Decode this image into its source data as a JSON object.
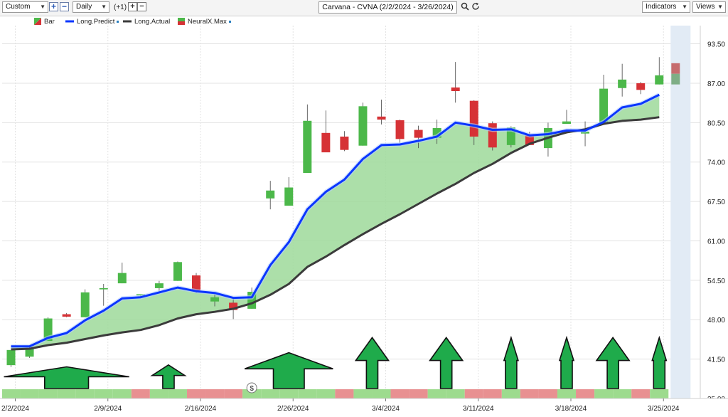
{
  "toolbar": {
    "mode_select": "Custom",
    "interval_select": "Daily",
    "offset_label": "(+1)",
    "title": "Carvana - CVNA (2/2/2024 - 3/26/2024)",
    "indicators_label": "Indicators",
    "views_label": "Views"
  },
  "legend": {
    "items": [
      {
        "label": "Bar"
      },
      {
        "label": "Long.Predict",
        "color": "#0b36ff"
      },
      {
        "label": "Long.Actual",
        "color": "#3b3b3b"
      },
      {
        "label": "NeuralX.Max"
      }
    ]
  },
  "colors": {
    "up": "#4cb84a",
    "down": "#d63236",
    "predict": "#0b36ff",
    "actual": "#3b3b3b",
    "fill": "#9ed99a",
    "signal_green": "#9ddb8e",
    "signal_red": "#e89091",
    "arrow": "#1fab4b"
  },
  "chart_data": {
    "type": "candlestick",
    "ylim": [
      35,
      96.5
    ],
    "yticks": [
      "35.00",
      "41.50",
      "48.00",
      "54.50",
      "61.00",
      "67.50",
      "74.00",
      "80.50",
      "87.00",
      "93.50"
    ],
    "xticks": [
      {
        "label": "2/2/2024",
        "index": 0
      },
      {
        "label": "2/9/2024",
        "index": 5
      },
      {
        "label": "2/16/2024",
        "index": 10
      },
      {
        "label": "2/26/2024",
        "index": 15
      },
      {
        "label": "3/4/2024",
        "index": 20
      },
      {
        "label": "3/11/2024",
        "index": 25
      },
      {
        "label": "3/18/2024",
        "index": 30
      },
      {
        "label": "3/25/2024",
        "index": 35
      }
    ],
    "candles": [
      {
        "o": 40.5,
        "h": 42.7,
        "l": 40.2,
        "c": 43.0
      },
      {
        "o": 41.9,
        "h": 43.7,
        "l": 41.7,
        "c": 43.2
      },
      {
        "o": 44.5,
        "h": 48.4,
        "l": 44.5,
        "c": 48.2
      },
      {
        "o": 48.9,
        "h": 49.1,
        "l": 48.4,
        "c": 48.5
      },
      {
        "o": 48.4,
        "h": 53.0,
        "l": 48.4,
        "c": 52.5
      },
      {
        "o": 53.0,
        "h": 53.9,
        "l": 50.3,
        "c": 53.2
      },
      {
        "o": 54.0,
        "h": 57.4,
        "l": 54.0,
        "c": 55.7
      },
      {
        "o": 52.0,
        "h": 52.2,
        "l": 51.8,
        "c": 52.2
      },
      {
        "o": 53.2,
        "h": 54.4,
        "l": 52.3,
        "c": 54.0
      },
      {
        "o": 54.4,
        "h": 57.6,
        "l": 54.4,
        "c": 57.5
      },
      {
        "o": 55.3,
        "h": 55.7,
        "l": 52.4,
        "c": 52.8
      },
      {
        "o": 51.0,
        "h": 52.2,
        "l": 50.2,
        "c": 51.7
      },
      {
        "o": 50.8,
        "h": 51.4,
        "l": 48.1,
        "c": 49.6
      },
      {
        "o": 49.8,
        "h": 53.3,
        "l": 49.8,
        "c": 52.6
      },
      {
        "o": 68.0,
        "h": 70.9,
        "l": 66.2,
        "c": 69.3
      },
      {
        "o": 66.8,
        "h": 71.5,
        "l": 66.8,
        "c": 69.8
      },
      {
        "o": 72.2,
        "h": 83.5,
        "l": 72.2,
        "c": 80.8
      },
      {
        "o": 78.8,
        "h": 82.5,
        "l": 75.8,
        "c": 75.6
      },
      {
        "o": 78.2,
        "h": 79.1,
        "l": 75.8,
        "c": 76.0
      },
      {
        "o": 76.7,
        "h": 83.8,
        "l": 76.7,
        "c": 83.2
      },
      {
        "o": 81.5,
        "h": 84.3,
        "l": 80.2,
        "c": 81.0
      },
      {
        "o": 80.9,
        "h": 81.0,
        "l": 77.1,
        "c": 77.8
      },
      {
        "o": 79.3,
        "h": 80.0,
        "l": 76.3,
        "c": 78.0
      },
      {
        "o": 78.0,
        "h": 81.0,
        "l": 77.0,
        "c": 79.6
      },
      {
        "o": 86.3,
        "h": 90.5,
        "l": 83.8,
        "c": 85.7
      },
      {
        "o": 84.1,
        "h": 84.2,
        "l": 76.8,
        "c": 78.2
      },
      {
        "o": 80.4,
        "h": 80.7,
        "l": 75.9,
        "c": 76.4
      },
      {
        "o": 76.8,
        "h": 79.9,
        "l": 76.4,
        "c": 79.7
      },
      {
        "o": 78.4,
        "h": 79.0,
        "l": 76.8,
        "c": 76.8
      },
      {
        "o": 76.3,
        "h": 80.5,
        "l": 74.9,
        "c": 79.6
      },
      {
        "o": 80.3,
        "h": 82.6,
        "l": 80.3,
        "c": 80.7
      },
      {
        "o": 78.7,
        "h": 80.7,
        "l": 76.6,
        "c": 79.0
      },
      {
        "o": 80.4,
        "h": 88.4,
        "l": 80.4,
        "c": 86.1
      },
      {
        "o": 86.2,
        "h": 90.2,
        "l": 84.8,
        "c": 87.6
      },
      {
        "o": 87.0,
        "h": 87.2,
        "l": 85.2,
        "c": 85.9
      },
      {
        "o": 86.8,
        "h": 91.3,
        "l": 86.8,
        "c": 88.3
      }
    ],
    "neuralx_max": {
      "high": 90.3,
      "low": 86.8
    },
    "series": [
      {
        "name": "Long.Predict",
        "values": [
          43.6,
          43.6,
          45.0,
          45.8,
          47.9,
          49.5,
          51.5,
          51.7,
          52.5,
          53.3,
          52.7,
          52.4,
          51.6,
          51.7,
          57.0,
          60.8,
          66.2,
          69.1,
          71.1,
          74.5,
          76.8,
          76.9,
          77.5,
          78.2,
          80.5,
          80.0,
          79.3,
          79.4,
          78.4,
          78.6,
          79.2,
          79.2,
          80.6,
          83.0,
          83.6,
          85.1
        ]
      },
      {
        "name": "Long.Actual",
        "values": [
          43.1,
          43.2,
          43.8,
          44.2,
          44.8,
          45.4,
          45.9,
          46.3,
          47.1,
          48.2,
          48.9,
          49.3,
          49.8,
          50.7,
          52.1,
          53.9,
          56.7,
          58.4,
          60.3,
          62.1,
          63.8,
          65.4,
          67.1,
          68.8,
          70.4,
          72.2,
          73.7,
          75.5,
          77.0,
          78.0,
          78.9,
          79.4,
          80.3,
          80.8,
          81.0,
          81.4
        ]
      }
    ],
    "signal_strip": [
      "G",
      "G",
      "G",
      "G",
      "G",
      "G",
      "G",
      "R",
      "G",
      "G",
      "R",
      "R",
      "R",
      "G",
      "G",
      "G",
      "G",
      "G",
      "R",
      "G",
      "G",
      "R",
      "R",
      "G",
      "G",
      "R",
      "R",
      "G",
      "R",
      "R",
      "G",
      "R",
      "G",
      "G",
      "R",
      "G"
    ],
    "arrows": [
      {
        "start": 0,
        "end": 6,
        "size": 0.17
      },
      {
        "start": 8,
        "end": 9,
        "size": 0.19
      },
      {
        "start": 13,
        "end": 17,
        "size": 0.32
      },
      {
        "start": 19,
        "end": 20,
        "size": 0.48
      },
      {
        "start": 23,
        "end": 24,
        "size": 0.48
      },
      {
        "start": 27,
        "end": 27,
        "size": 0.48
      },
      {
        "start": 30,
        "end": 30,
        "size": 0.48
      },
      {
        "start": 32,
        "end": 33,
        "size": 0.48
      },
      {
        "start": 35,
        "end": 35,
        "size": 0.48
      }
    ],
    "dividend_marker_index": 13
  }
}
